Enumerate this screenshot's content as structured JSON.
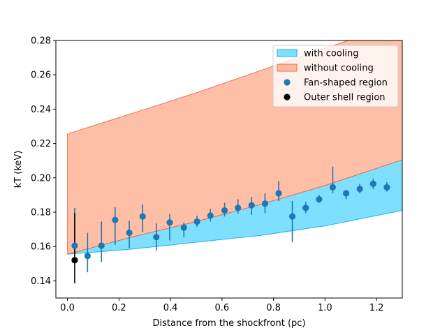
{
  "chart_data": {
    "type": "scatter",
    "title": "",
    "xlabel": "Distance from the shockfront (pc)",
    "ylabel": "kT (keV)",
    "xlim": [
      -0.045,
      1.3
    ],
    "ylim": [
      0.13,
      0.28
    ],
    "xticks": [
      "0.0",
      "0.2",
      "0.4",
      "0.6",
      "0.8",
      "1.0",
      "1.2"
    ],
    "yticks": [
      "0.14",
      "0.16",
      "0.18",
      "0.20",
      "0.22",
      "0.24",
      "0.26",
      "0.28"
    ],
    "grid": false,
    "legend_position": "top-right",
    "bands": [
      {
        "name": "with cooling",
        "color": "#00bfff",
        "edge_color": "#1eb2e6",
        "x": [
          0.0,
          0.25,
          0.5,
          0.75,
          1.0,
          1.3
        ],
        "lower": [
          0.1555,
          0.1585,
          0.1625,
          0.1665,
          0.172,
          0.181
        ],
        "upper": [
          0.1555,
          0.1655,
          0.1745,
          0.1845,
          0.1955,
          0.2105
        ]
      },
      {
        "name": "without cooling",
        "color": "#ff7f50",
        "edge_color": "#e8704a",
        "x": [
          0.0,
          0.25,
          0.5,
          0.75,
          1.0,
          1.3
        ],
        "lower": [
          0.1555,
          0.1655,
          0.1745,
          0.1845,
          0.1955,
          0.2105
        ],
        "upper": [
          0.2255,
          0.2375,
          0.2495,
          0.2625,
          0.2755,
          0.2905
        ]
      }
    ],
    "series": [
      {
        "name": "Fan-shaped region",
        "color": "#1f77b4",
        "points": [
          {
            "x": 0.028,
            "y": 0.1605,
            "lo": 0.1555,
            "hi": 0.1825
          },
          {
            "x": 0.078,
            "y": 0.1545,
            "lo": 0.145,
            "hi": 0.168
          },
          {
            "x": 0.132,
            "y": 0.1605,
            "lo": 0.151,
            "hi": 0.1745
          },
          {
            "x": 0.185,
            "y": 0.1755,
            "lo": 0.161,
            "hi": 0.183
          },
          {
            "x": 0.24,
            "y": 0.168,
            "lo": 0.159,
            "hi": 0.175
          },
          {
            "x": 0.292,
            "y": 0.1775,
            "lo": 0.1685,
            "hi": 0.1845
          },
          {
            "x": 0.345,
            "y": 0.1655,
            "lo": 0.1575,
            "hi": 0.1735
          },
          {
            "x": 0.397,
            "y": 0.174,
            "lo": 0.1635,
            "hi": 0.179
          },
          {
            "x": 0.452,
            "y": 0.171,
            "lo": 0.1655,
            "hi": 0.174
          },
          {
            "x": 0.503,
            "y": 0.1745,
            "lo": 0.1715,
            "hi": 0.178
          },
          {
            "x": 0.555,
            "y": 0.178,
            "lo": 0.1745,
            "hi": 0.182
          },
          {
            "x": 0.61,
            "y": 0.181,
            "lo": 0.1775,
            "hi": 0.1855
          },
          {
            "x": 0.662,
            "y": 0.1825,
            "lo": 0.179,
            "hi": 0.1875
          },
          {
            "x": 0.715,
            "y": 0.184,
            "lo": 0.1785,
            "hi": 0.189
          },
          {
            "x": 0.767,
            "y": 0.185,
            "lo": 0.1795,
            "hi": 0.191
          },
          {
            "x": 0.82,
            "y": 0.191,
            "lo": 0.1865,
            "hi": 0.198
          },
          {
            "x": 0.873,
            "y": 0.1775,
            "lo": 0.1625,
            "hi": 0.1865
          },
          {
            "x": 0.925,
            "y": 0.1825,
            "lo": 0.1795,
            "hi": 0.186
          },
          {
            "x": 0.977,
            "y": 0.1875,
            "lo": 0.1855,
            "hi": 0.19
          },
          {
            "x": 1.03,
            "y": 0.1945,
            "lo": 0.191,
            "hi": 0.2065
          },
          {
            "x": 1.082,
            "y": 0.191,
            "lo": 0.1875,
            "hi": 0.193
          },
          {
            "x": 1.135,
            "y": 0.1935,
            "lo": 0.191,
            "hi": 0.1965
          },
          {
            "x": 1.187,
            "y": 0.1965,
            "lo": 0.1935,
            "hi": 0.1995
          },
          {
            "x": 1.24,
            "y": 0.1945,
            "lo": 0.192,
            "hi": 0.1975
          }
        ]
      },
      {
        "name": "Outer shell region",
        "color": "#000000",
        "points": [
          {
            "x": 0.028,
            "y": 0.152,
            "lo": 0.1385,
            "hi": 0.1795
          }
        ]
      }
    ]
  }
}
